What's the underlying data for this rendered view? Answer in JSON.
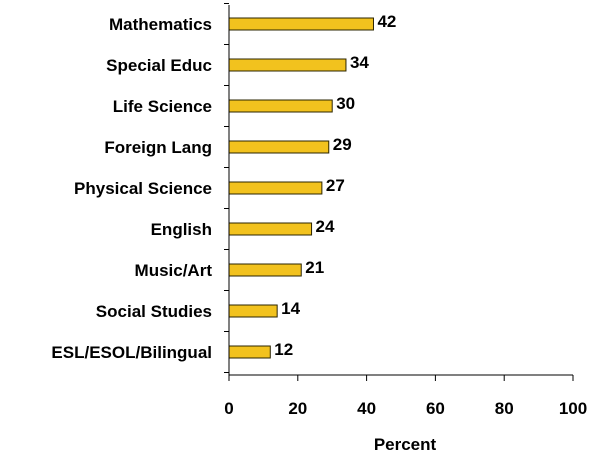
{
  "chart_data": {
    "type": "bar",
    "orientation": "horizontal",
    "categories": [
      "Mathematics",
      "Special Educ",
      "Life Science",
      "Foreign Lang",
      "Physical Science",
      "English",
      "Music/Art",
      "Social Studies",
      "ESL/ESOL/Bilingual"
    ],
    "values": [
      42,
      34,
      30,
      29,
      27,
      24,
      21,
      14,
      12
    ],
    "xlabel": "Percent",
    "ylabel": "",
    "title": "",
    "xlim": [
      0,
      100
    ],
    "xticks": [
      0,
      20,
      40,
      60,
      80,
      100
    ],
    "grid": false,
    "legend": "none",
    "colors": {
      "bar_fill": "#f2c21e",
      "bar_stroke": "#2b2400",
      "axis": "#000000"
    }
  }
}
